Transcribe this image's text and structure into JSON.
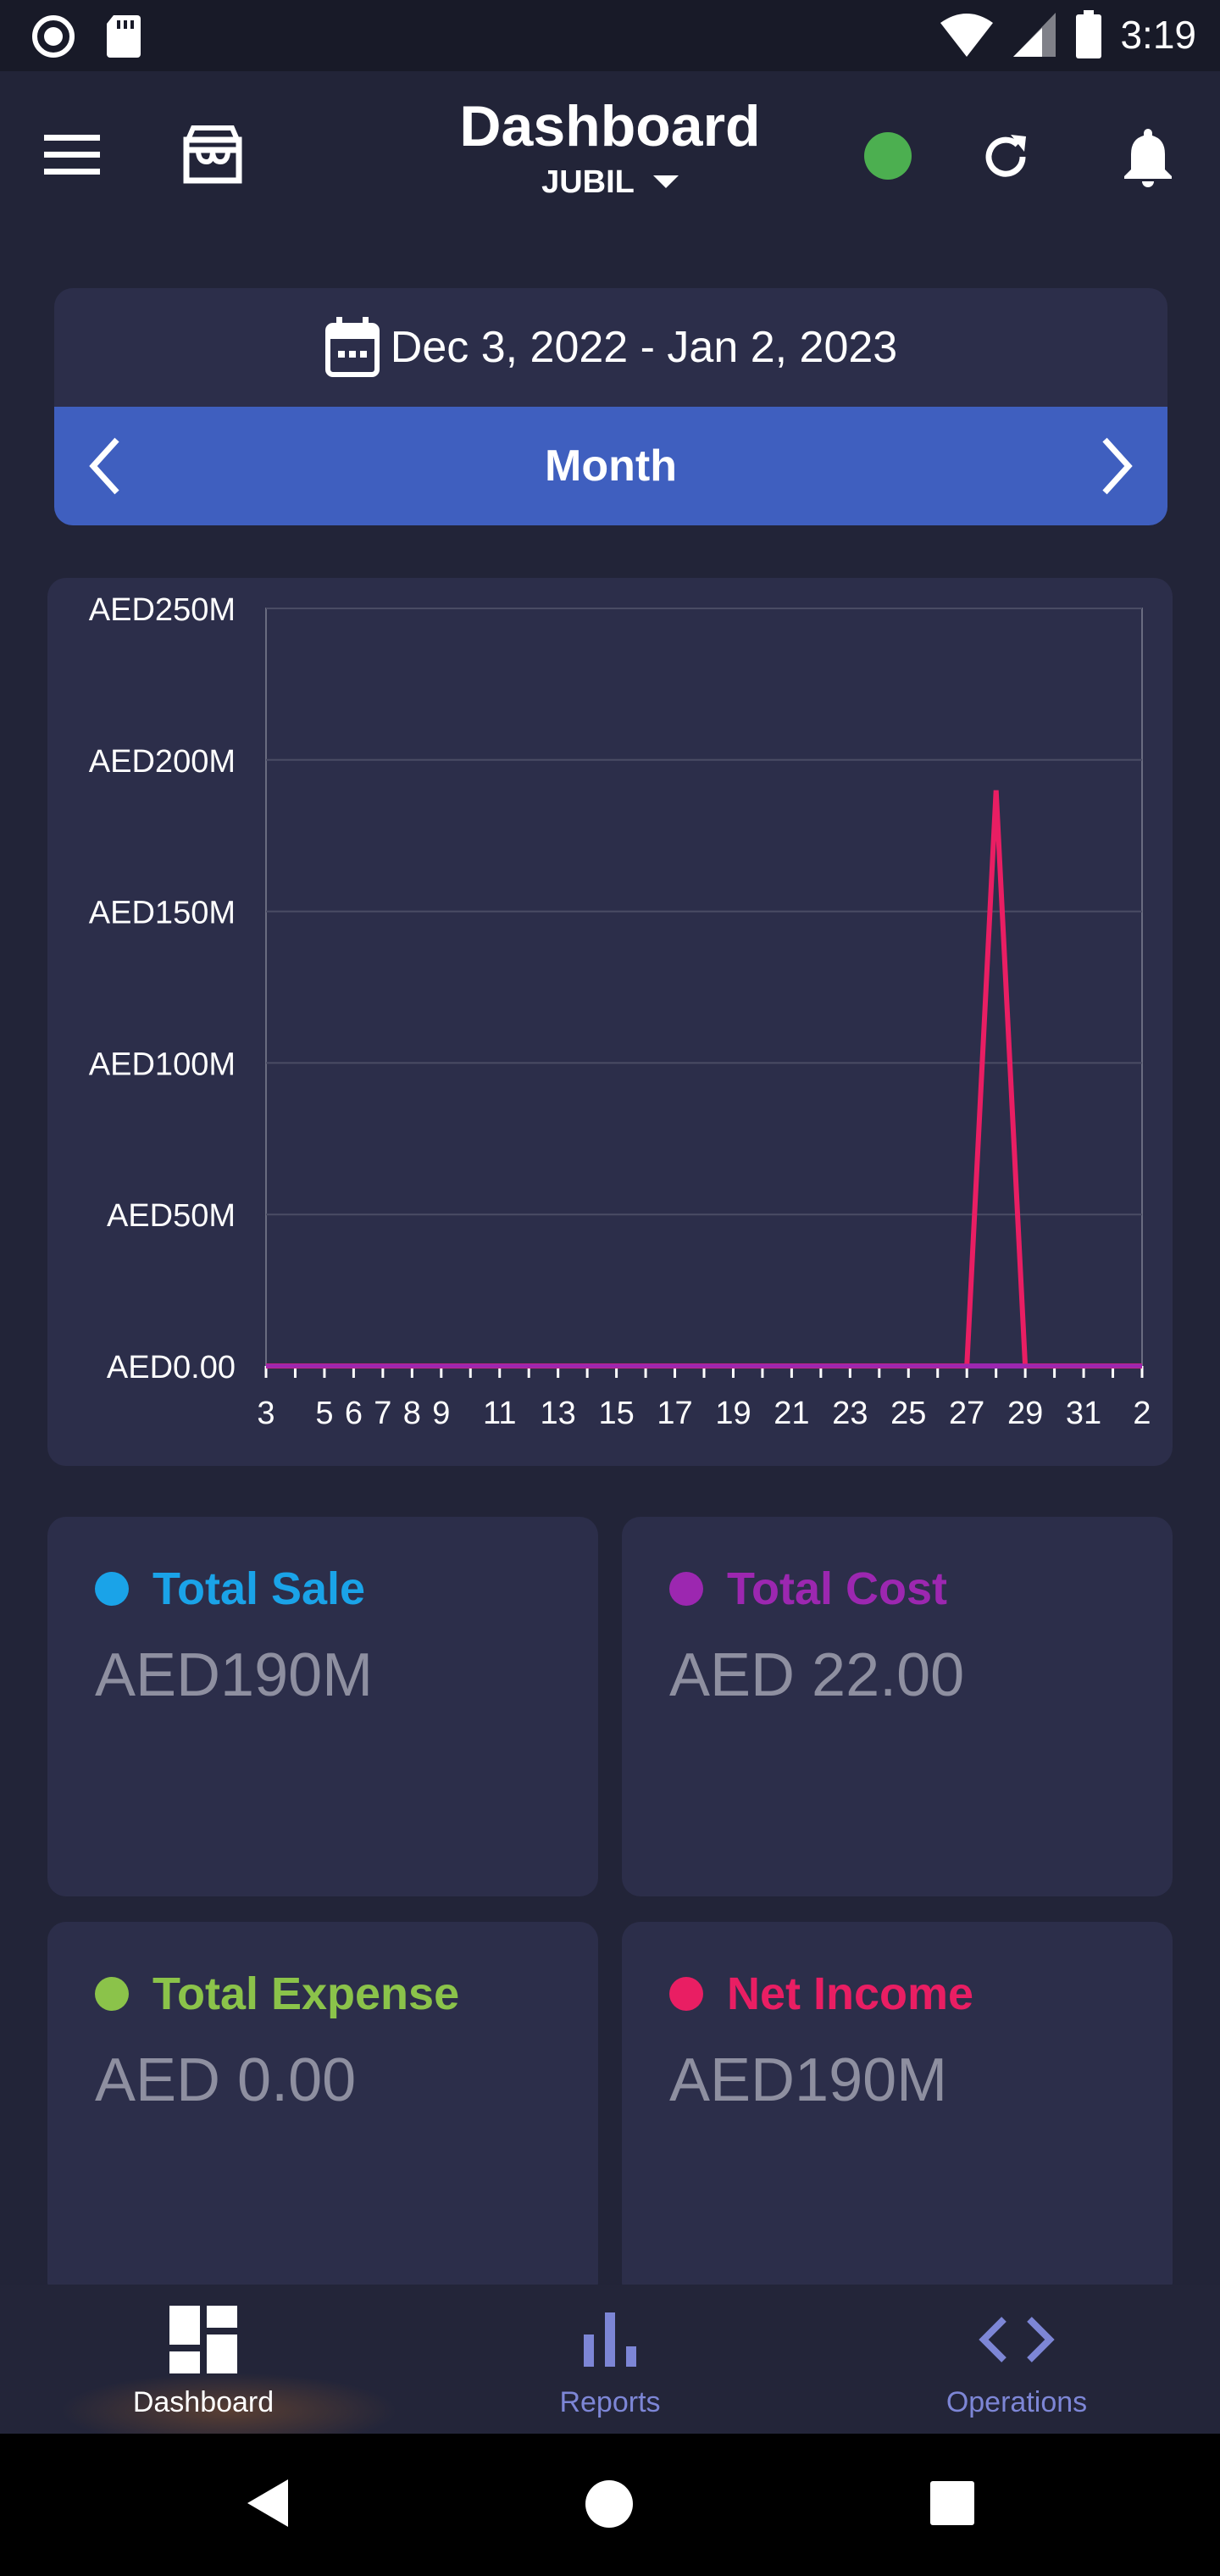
{
  "status_bar": {
    "time": "3:19"
  },
  "header": {
    "title": "Dashboard",
    "branch": "JUBIL",
    "status_color": "#4caf50"
  },
  "date_range": {
    "text": "Dec 3, 2022 - Jan 2, 2023",
    "period": "Month"
  },
  "chart_data": {
    "type": "line",
    "y_tick_labels": [
      "AED250M",
      "AED200M",
      "AED150M",
      "AED100M",
      "AED50M",
      "AED0.00"
    ],
    "x_tick_labels": [
      "3",
      "5",
      "6",
      "7",
      "8",
      "9",
      "11",
      "13",
      "15",
      "17",
      "19",
      "21",
      "23",
      "25",
      "27",
      "29",
      "31",
      "2"
    ],
    "ylim": [
      0,
      250
    ],
    "grid": true,
    "x": [
      "Dec 3",
      "Dec 4",
      "Dec 5",
      "Dec 6",
      "Dec 7",
      "Dec 8",
      "Dec 9",
      "Dec 10",
      "Dec 11",
      "Dec 12",
      "Dec 13",
      "Dec 14",
      "Dec 15",
      "Dec 16",
      "Dec 17",
      "Dec 18",
      "Dec 19",
      "Dec 20",
      "Dec 21",
      "Dec 22",
      "Dec 23",
      "Dec 24",
      "Dec 25",
      "Dec 26",
      "Dec 27",
      "Dec 28",
      "Dec 29",
      "Dec 30",
      "Dec 31",
      "Jan 1",
      "Jan 2"
    ],
    "series": [
      {
        "color": "#e91e63",
        "values": [
          0,
          0,
          0,
          0,
          0,
          0,
          0,
          0,
          0,
          0,
          0,
          0,
          0,
          0,
          0,
          0,
          0,
          0,
          0,
          0,
          0,
          0,
          0,
          0,
          0,
          190,
          0,
          0,
          0,
          0,
          0
        ]
      },
      {
        "color": "#9c27b0",
        "values": [
          0,
          0,
          0,
          0,
          0,
          0,
          0,
          0,
          0,
          0,
          0,
          0,
          0,
          0,
          0,
          0,
          0,
          0,
          0,
          0,
          0,
          0,
          0,
          0,
          0,
          0,
          0,
          0,
          0,
          0,
          0
        ]
      }
    ]
  },
  "stats": [
    {
      "label": "Total Sale",
      "value": "AED190M",
      "color": "#1aa3e8"
    },
    {
      "label": "Total Cost",
      "value": "AED 22.00",
      "color": "#9c27b0"
    },
    {
      "label": "Total Expense",
      "value": "AED 0.00",
      "color": "#8bc34a"
    },
    {
      "label": "Net Income",
      "value": "AED190M",
      "color": "#e91e63"
    }
  ],
  "bottom_nav": [
    {
      "label": "Dashboard",
      "active": true
    },
    {
      "label": "Reports",
      "active": false
    },
    {
      "label": "Operations",
      "active": false
    }
  ],
  "colors": {
    "accent": "#3f5fbf",
    "card": "#2c2e4a",
    "background": "#222438",
    "inactive_nav": "#7d86d6"
  }
}
